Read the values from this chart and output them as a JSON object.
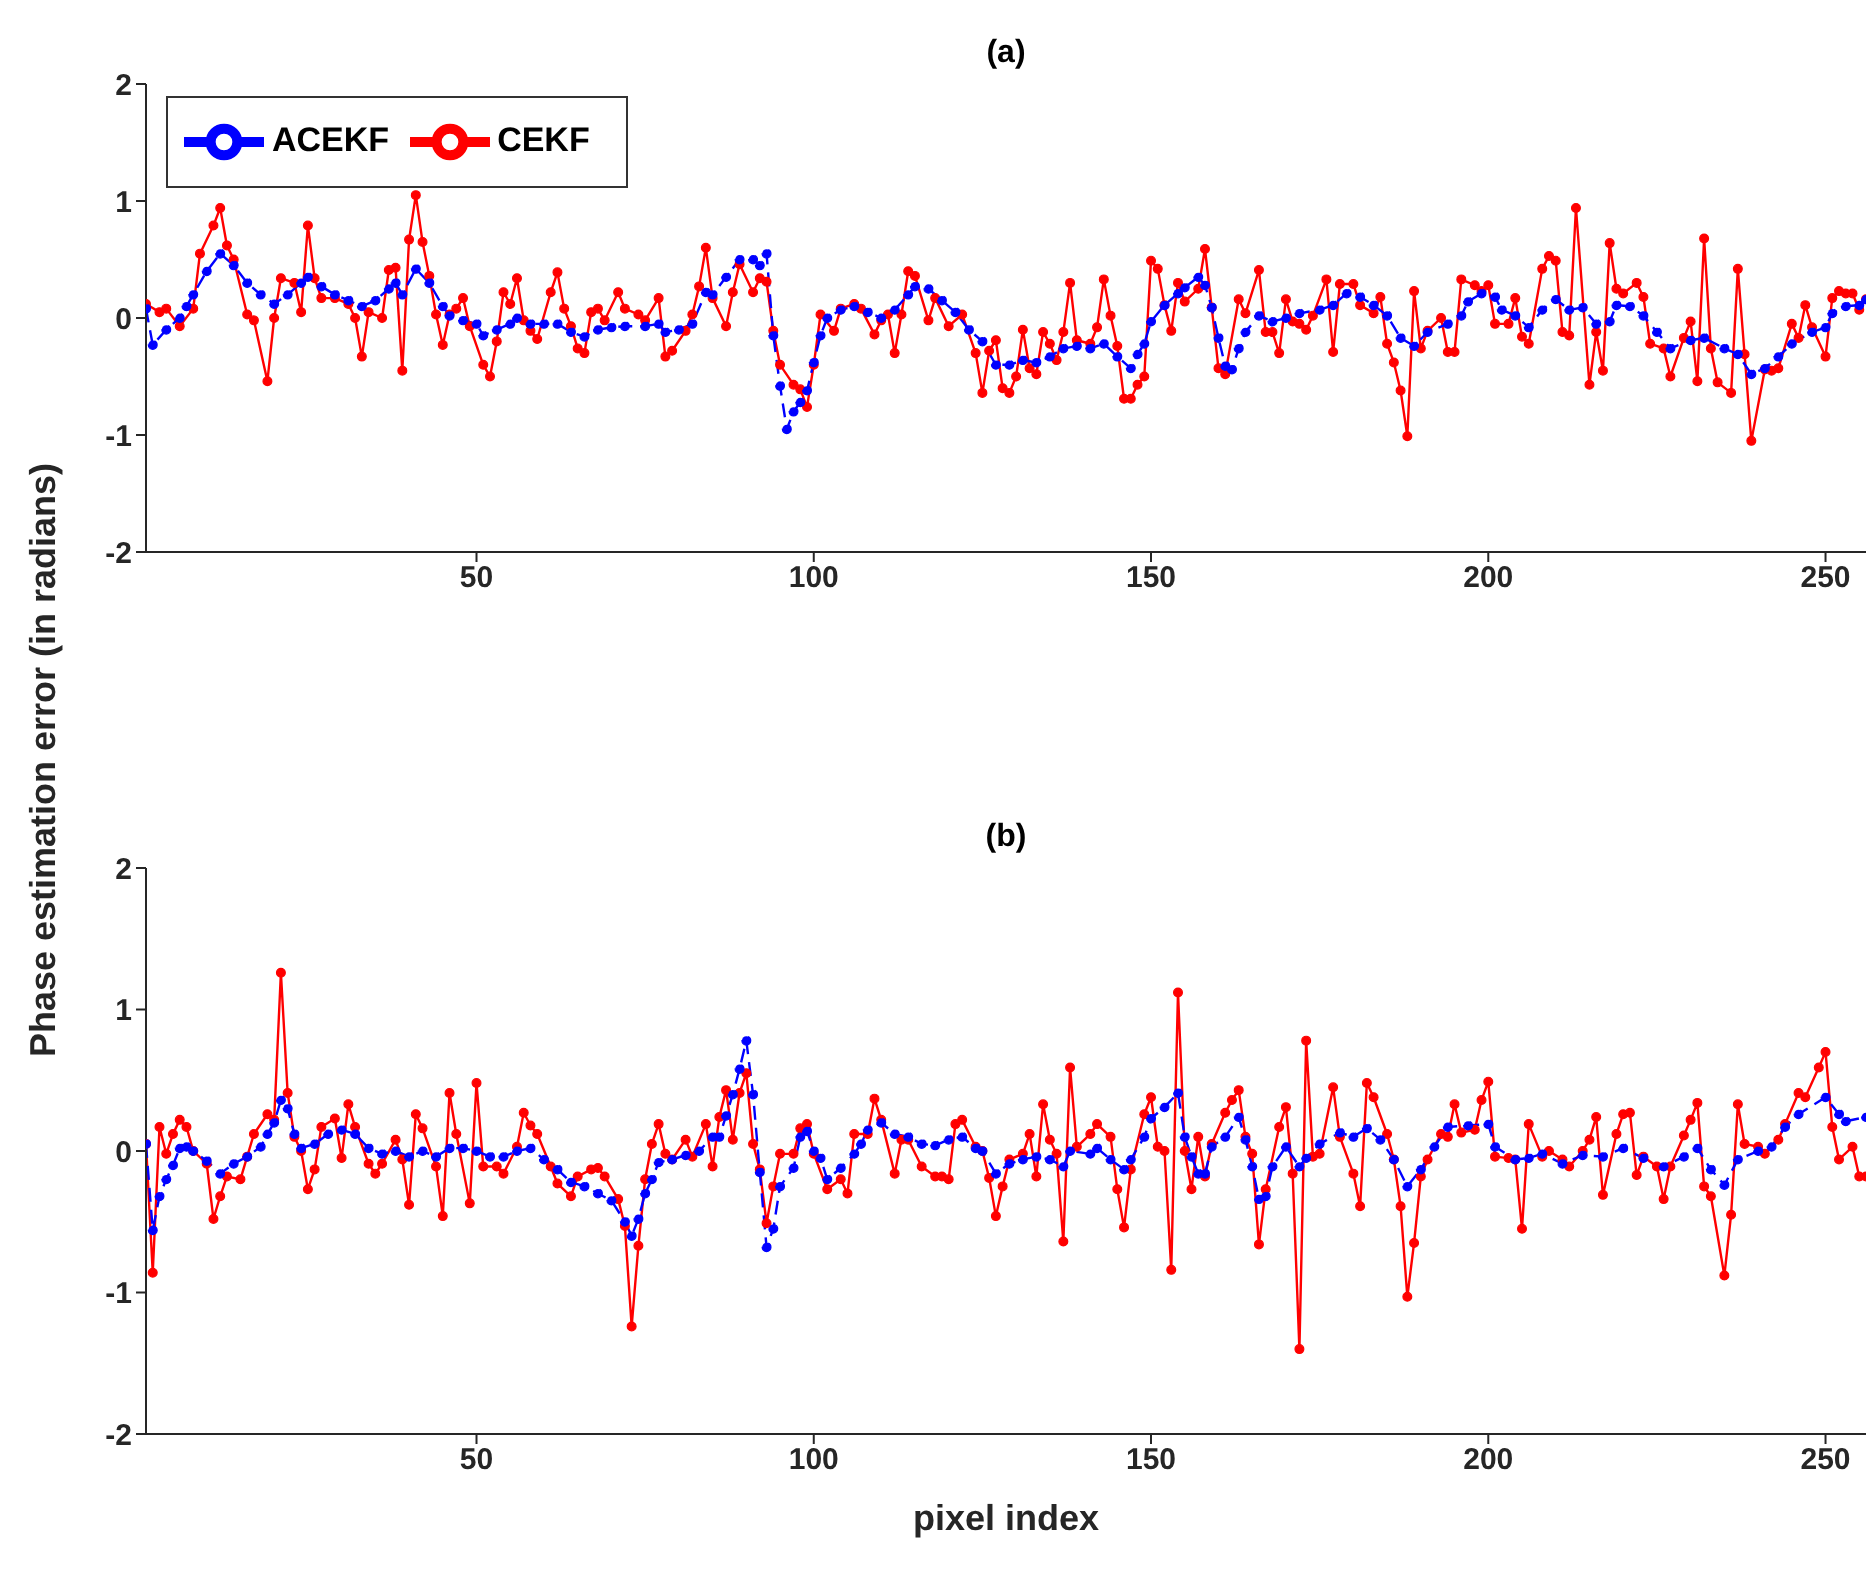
{
  "chart_data": [
    {
      "type": "line",
      "title": "(a)",
      "ylabel": "Phase estimation error (in radians)",
      "xlim": [
        1,
        256
      ],
      "xticks": [
        50,
        100,
        150,
        200,
        250
      ],
      "ylim": [
        -2,
        2
      ],
      "yticks": [
        -2,
        -1,
        0,
        1,
        2
      ],
      "legend": "top left",
      "marker": "circle",
      "series": [
        {
          "name": "CEKF",
          "color": "#ff0000",
          "line_style": "solid",
          "x": [
            1,
            3,
            4,
            6,
            8,
            9,
            11,
            12,
            13,
            14,
            16,
            17,
            19,
            20,
            21,
            23,
            24,
            25,
            26,
            27,
            29,
            31,
            32,
            33,
            34,
            36,
            37,
            38,
            39,
            40,
            41,
            42,
            43,
            44,
            45,
            46,
            47,
            48,
            49,
            51,
            52,
            53,
            54,
            55,
            56,
            57,
            58,
            59,
            61,
            62,
            63,
            64,
            65,
            66,
            67,
            68,
            69,
            71,
            72,
            74,
            75,
            77,
            78,
            79,
            81,
            82,
            83,
            84,
            85,
            87,
            88,
            89,
            91,
            92,
            93,
            94,
            95,
            97,
            98,
            99,
            100,
            101,
            103,
            104,
            106,
            107,
            109,
            110,
            111,
            112,
            113,
            114,
            115,
            117,
            118,
            120,
            122,
            124,
            125,
            126,
            127,
            128,
            129,
            130,
            131,
            132,
            133,
            134,
            135,
            136,
            137,
            138,
            139,
            141,
            142,
            143,
            144,
            145,
            146,
            147,
            148,
            149,
            150,
            151,
            152,
            153,
            154,
            155,
            157,
            158,
            159,
            160,
            161,
            163,
            164,
            166,
            167,
            168,
            169,
            170,
            171,
            172,
            173,
            174,
            176,
            177,
            178,
            180,
            181,
            183,
            184,
            185,
            186,
            187,
            188,
            189,
            190,
            191,
            193,
            194,
            195,
            196,
            198,
            199,
            200,
            201,
            203,
            204,
            205,
            206,
            208,
            209,
            210,
            211,
            212,
            213,
            215,
            216,
            217,
            218,
            219,
            220,
            222,
            223,
            224,
            226,
            227,
            229,
            230,
            231,
            232,
            233,
            234,
            236,
            237,
            238,
            239,
            241,
            242,
            243,
            245,
            246,
            247,
            248,
            250,
            251,
            252,
            253,
            254,
            255,
            256
          ],
          "values": [
            0.12,
            0.05,
            0.08,
            -0.07,
            0.08,
            0.55,
            0.79,
            0.94,
            0.62,
            0.5,
            0.03,
            -0.02,
            -0.54,
            0,
            0.34,
            0.3,
            0.05,
            0.79,
            0.34,
            0.17,
            0.17,
            0.12,
            0,
            -0.33,
            0.05,
            0,
            0.41,
            0.43,
            -0.45,
            0.67,
            1.05,
            0.65,
            0.36,
            0.03,
            -0.23,
            0.03,
            0.08,
            0.17,
            -0.07,
            -0.4,
            -0.5,
            -0.2,
            0.22,
            0.12,
            0.34,
            -0.02,
            -0.11,
            -0.18,
            0.22,
            0.39,
            0.08,
            -0.07,
            -0.26,
            -0.3,
            0.05,
            0.08,
            -0.02,
            0.22,
            0.08,
            0.03,
            -0.02,
            0.17,
            -0.33,
            -0.28,
            -0.11,
            0.03,
            0.27,
            0.6,
            0.17,
            -0.07,
            0.22,
            0.46,
            0.22,
            0.34,
            0.31,
            -0.11,
            -0.4,
            -0.57,
            -0.61,
            -0.76,
            -0.4,
            0.03,
            -0.11,
            0.08,
            0.12,
            0.08,
            -0.14,
            -0.02,
            0.03,
            -0.3,
            0.03,
            0.4,
            0.36,
            -0.02,
            0.17,
            -0.07,
            0.03,
            -0.3,
            -0.64,
            -0.28,
            -0.19,
            -0.6,
            -0.64,
            -0.5,
            -0.1,
            -0.43,
            -0.48,
            -0.12,
            -0.22,
            -0.36,
            -0.12,
            0.3,
            -0.19,
            -0.22,
            -0.08,
            0.33,
            0.02,
            -0.24,
            -0.69,
            -0.69,
            -0.57,
            -0.5,
            0.49,
            0.42,
            0.11,
            -0.11,
            0.3,
            0.14,
            0.25,
            0.59,
            0.09,
            -0.43,
            -0.48,
            0.16,
            0.04,
            0.41,
            -0.12,
            -0.12,
            -0.3,
            0.16,
            -0.03,
            -0.05,
            -0.1,
            0.02,
            0.33,
            -0.29,
            0.29,
            0.29,
            0.11,
            0.04,
            0.18,
            -0.22,
            -0.38,
            -0.62,
            -1.01,
            0.23,
            -0.26,
            -0.11,
            0,
            -0.29,
            -0.29,
            0.33,
            0.28,
            0.23,
            0.28,
            -0.05,
            -0.05,
            0.17,
            -0.16,
            -0.22,
            0.42,
            0.53,
            0.49,
            -0.12,
            -0.15,
            0.94,
            -0.57,
            -0.12,
            -0.45,
            0.64,
            0.25,
            0.21,
            0.3,
            0.18,
            -0.22,
            -0.26,
            -0.5,
            -0.17,
            -0.03,
            -0.54,
            0.68,
            -0.26,
            -0.55,
            -0.64,
            0.42,
            -0.31,
            -1.05,
            -0.44,
            -0.45,
            -0.43,
            -0.05,
            -0.17,
            0.11,
            -0.08,
            -0.33,
            0.17,
            0.23,
            0.21,
            0.21,
            0.07,
            0.16
          ]
        },
        {
          "name": "ACEKF",
          "color": "#0000ff",
          "line_style": "dashed",
          "x": [
            1,
            2,
            4,
            6,
            7,
            8,
            10,
            12,
            14,
            16,
            18,
            20,
            22,
            24,
            25,
            27,
            29,
            31,
            33,
            35,
            37,
            38,
            39,
            41,
            43,
            45,
            46,
            48,
            50,
            51,
            53,
            55,
            56,
            58,
            60,
            62,
            64,
            66,
            68,
            70,
            72,
            75,
            77,
            78,
            80,
            82,
            84,
            85,
            87,
            89,
            91,
            92,
            93,
            94,
            95,
            96,
            97,
            98,
            99,
            100,
            101,
            102,
            104,
            106,
            108,
            110,
            112,
            114,
            115,
            117,
            119,
            121,
            123,
            125,
            127,
            129,
            131,
            133,
            135,
            137,
            139,
            141,
            143,
            145,
            147,
            148,
            149,
            150,
            152,
            154,
            155,
            157,
            158,
            159,
            160,
            161,
            162,
            163,
            164,
            166,
            168,
            170,
            172,
            175,
            177,
            179,
            181,
            183,
            185,
            187,
            189,
            191,
            194,
            196,
            197,
            199,
            201,
            202,
            204,
            206,
            208,
            210,
            212,
            214,
            216,
            218,
            219,
            221,
            223,
            225,
            227,
            230,
            232,
            235,
            237,
            239,
            241,
            243,
            245,
            248,
            250,
            251,
            253,
            255,
            256
          ],
          "values": [
            0.08,
            -0.23,
            -0.1,
            0,
            0.1,
            0.2,
            0.4,
            0.55,
            0.45,
            0.3,
            0.2,
            0.12,
            0.2,
            0.3,
            0.35,
            0.27,
            0.2,
            0.15,
            0.1,
            0.15,
            0.25,
            0.3,
            0.2,
            0.42,
            0.3,
            0.1,
            0.02,
            -0.02,
            -0.05,
            -0.15,
            -0.1,
            -0.05,
            0,
            -0.05,
            -0.05,
            -0.05,
            -0.12,
            -0.16,
            -0.1,
            -0.08,
            -0.07,
            -0.07,
            -0.05,
            -0.12,
            -0.1,
            -0.05,
            0.22,
            0.2,
            0.35,
            0.5,
            0.5,
            0.45,
            0.55,
            -0.15,
            -0.58,
            -0.95,
            -0.8,
            -0.72,
            -0.62,
            -0.38,
            -0.15,
            0,
            0.07,
            0.1,
            0.05,
            0,
            0.07,
            0.2,
            0.27,
            0.25,
            0.15,
            0.05,
            -0.1,
            -0.2,
            -0.4,
            -0.4,
            -0.36,
            -0.38,
            -0.33,
            -0.26,
            -0.24,
            -0.26,
            -0.22,
            -0.33,
            -0.43,
            -0.31,
            -0.22,
            -0.03,
            0.11,
            0.21,
            0.26,
            0.35,
            0.28,
            0.09,
            -0.17,
            -0.41,
            -0.44,
            -0.26,
            -0.12,
            0.02,
            -0.03,
            0,
            0.04,
            0.07,
            0.11,
            0.21,
            0.18,
            0.11,
            0.02,
            -0.17,
            -0.24,
            -0.12,
            -0.05,
            0.02,
            0.14,
            0.21,
            0.18,
            0.07,
            0.02,
            -0.08,
            0.07,
            0.16,
            0.07,
            0.09,
            -0.05,
            -0.03,
            0.11,
            0.1,
            0.02,
            -0.12,
            -0.26,
            -0.19,
            -0.17,
            -0.26,
            -0.31,
            -0.48,
            -0.43,
            -0.33,
            -0.22,
            -0.12,
            -0.08,
            0.04,
            0.1,
            0.11,
            0.16
          ]
        }
      ]
    },
    {
      "type": "line",
      "title": "(b)",
      "xlabel": "pixel index",
      "xlim": [
        1,
        256
      ],
      "xticks": [
        50,
        100,
        150,
        200,
        250
      ],
      "ylim": [
        -2,
        2
      ],
      "yticks": [
        -2,
        -1,
        0,
        1,
        2
      ],
      "marker": "circle",
      "series": [
        {
          "color": "#ff0000",
          "line_style": "solid",
          "x": [
            1,
            2,
            3,
            4,
            5,
            6,
            7,
            8,
            10,
            11,
            12,
            13,
            15,
            16,
            17,
            19,
            20,
            21,
            22,
            23,
            24,
            25,
            26,
            27,
            29,
            30,
            31,
            32,
            34,
            35,
            36,
            38,
            39,
            40,
            41,
            42,
            44,
            45,
            46,
            47,
            49,
            50,
            51,
            53,
            54,
            56,
            57,
            58,
            59,
            61,
            62,
            64,
            65,
            67,
            68,
            69,
            71,
            72,
            73,
            74,
            75,
            76,
            77,
            78,
            79,
            81,
            82,
            84,
            85,
            86,
            87,
            88,
            89,
            90,
            91,
            92,
            93,
            94,
            95,
            97,
            98,
            99,
            100,
            102,
            104,
            105,
            106,
            108,
            109,
            110,
            112,
            113,
            114,
            116,
            118,
            119,
            120,
            121,
            122,
            124,
            125,
            126,
            127,
            128,
            129,
            131,
            132,
            133,
            134,
            135,
            136,
            137,
            138,
            139,
            141,
            142,
            144,
            145,
            146,
            147,
            149,
            150,
            151,
            152,
            153,
            154,
            155,
            156,
            157,
            158,
            159,
            161,
            162,
            163,
            164,
            165,
            166,
            167,
            169,
            170,
            171,
            172,
            173,
            174,
            175,
            177,
            178,
            180,
            181,
            182,
            183,
            185,
            186,
            187,
            188,
            189,
            190,
            191,
            193,
            194,
            195,
            196,
            198,
            199,
            200,
            201,
            203,
            204,
            205,
            206,
            208,
            209,
            211,
            212,
            214,
            215,
            216,
            217,
            219,
            220,
            221,
            222,
            223,
            225,
            226,
            227,
            229,
            230,
            231,
            232,
            233,
            235,
            236,
            237,
            238,
            240,
            241,
            243,
            244,
            246,
            247,
            249,
            250,
            251,
            252,
            254,
            255,
            256
          ],
          "values": [
            0.05,
            -0.86,
            0.17,
            -0.02,
            0.12,
            0.22,
            0.17,
            0,
            -0.09,
            -0.48,
            -0.32,
            -0.18,
            -0.2,
            -0.04,
            0.12,
            0.26,
            0.22,
            1.26,
            0.41,
            0.1,
            0,
            -0.27,
            -0.13,
            0.17,
            0.23,
            -0.05,
            0.33,
            0.17,
            -0.09,
            -0.16,
            -0.09,
            0.08,
            -0.06,
            -0.38,
            0.26,
            0.16,
            -0.11,
            -0.46,
            0.41,
            0.12,
            -0.37,
            0.48,
            -0.11,
            -0.11,
            -0.16,
            0.03,
            0.27,
            0.18,
            0.12,
            -0.11,
            -0.23,
            -0.32,
            -0.18,
            -0.13,
            -0.12,
            -0.18,
            -0.34,
            -0.53,
            -1.24,
            -0.67,
            -0.2,
            0.05,
            0.19,
            -0.02,
            -0.06,
            0.08,
            -0.04,
            0.19,
            -0.11,
            0.24,
            0.43,
            0.08,
            0.41,
            0.55,
            0.05,
            -0.13,
            -0.51,
            -0.25,
            -0.02,
            -0.02,
            0.16,
            0.19,
            -0.02,
            -0.27,
            -0.2,
            -0.3,
            0.12,
            0.12,
            0.37,
            0.22,
            -0.16,
            0.08,
            0.08,
            -0.11,
            -0.18,
            -0.18,
            -0.2,
            0.19,
            0.22,
            0.03,
            0,
            -0.19,
            -0.46,
            -0.25,
            -0.06,
            -0.02,
            0.12,
            -0.18,
            0.33,
            0.08,
            -0.02,
            -0.64,
            0.59,
            0.03,
            0.12,
            0.19,
            0.1,
            -0.27,
            -0.54,
            -0.13,
            0.26,
            0.38,
            0.03,
            0,
            -0.84,
            1.12,
            0,
            -0.27,
            0.1,
            -0.18,
            0.05,
            0.27,
            0.36,
            0.43,
            0.1,
            -0.02,
            -0.66,
            -0.27,
            0.17,
            0.31,
            -0.16,
            -1.4,
            0.78,
            -0.04,
            -0.02,
            0.45,
            0.1,
            -0.16,
            -0.39,
            0.48,
            0.38,
            0.12,
            -0.06,
            -0.39,
            -1.03,
            -0.65,
            -0.18,
            -0.06,
            0.12,
            0.1,
            0.33,
            0.13,
            0.15,
            0.36,
            0.49,
            -0.04,
            -0.05,
            -0.06,
            -0.55,
            0.19,
            -0.04,
            0,
            -0.06,
            -0.11,
            0,
            0.08,
            0.24,
            -0.31,
            0.12,
            0.26,
            0.27,
            -0.17,
            -0.04,
            -0.11,
            -0.34,
            -0.11,
            0.11,
            0.22,
            0.34,
            -0.25,
            -0.32,
            -0.88,
            -0.45,
            0.33,
            0.05,
            0.03,
            -0.02,
            0.08,
            0.19,
            0.41,
            0.38,
            0.59,
            0.7,
            0.17,
            -0.06,
            0.03,
            -0.18,
            -0.18
          ]
        },
        {
          "color": "#0000ff",
          "line_style": "dashed",
          "x": [
            1,
            2,
            3,
            4,
            5,
            6,
            7,
            8,
            10,
            12,
            14,
            16,
            18,
            19,
            20,
            21,
            22,
            23,
            24,
            26,
            28,
            30,
            32,
            34,
            36,
            38,
            40,
            42,
            44,
            46,
            48,
            50,
            52,
            54,
            56,
            58,
            60,
            62,
            64,
            66,
            68,
            70,
            72,
            73,
            74,
            75,
            76,
            77,
            79,
            81,
            83,
            85,
            86,
            87,
            88,
            89,
            90,
            91,
            92,
            93,
            94,
            95,
            97,
            98,
            99,
            100,
            101,
            102,
            104,
            106,
            107,
            108,
            110,
            112,
            114,
            116,
            118,
            120,
            122,
            124,
            125,
            127,
            129,
            131,
            133,
            135,
            137,
            138,
            141,
            142,
            144,
            146,
            147,
            149,
            150,
            152,
            154,
            155,
            156,
            157,
            158,
            159,
            161,
            163,
            164,
            165,
            166,
            167,
            168,
            170,
            172,
            173,
            175,
            178,
            180,
            182,
            184,
            186,
            188,
            190,
            192,
            194,
            197,
            200,
            201,
            204,
            206,
            208,
            211,
            214,
            217,
            220,
            223,
            226,
            229,
            231,
            233,
            235,
            237,
            240,
            242,
            244,
            246,
            250,
            252,
            253,
            256
          ],
          "values": [
            0.05,
            -0.56,
            -0.32,
            -0.2,
            -0.1,
            0.02,
            0.03,
            0,
            -0.07,
            -0.16,
            -0.09,
            -0.04,
            0.03,
            0.12,
            0.2,
            0.36,
            0.3,
            0.12,
            0.02,
            0.05,
            0.12,
            0.15,
            0.12,
            0.02,
            -0.02,
            0,
            -0.04,
            0,
            -0.04,
            0.02,
            0.02,
            0,
            -0.04,
            -0.04,
            0,
            0.02,
            -0.06,
            -0.13,
            -0.22,
            -0.25,
            -0.3,
            -0.35,
            -0.5,
            -0.6,
            -0.48,
            -0.3,
            -0.2,
            -0.08,
            -0.06,
            -0.03,
            0,
            0.1,
            0.1,
            0.25,
            0.4,
            0.58,
            0.78,
            0.4,
            -0.15,
            -0.68,
            -0.55,
            -0.25,
            -0.12,
            0.1,
            0.14,
            0,
            -0.05,
            -0.2,
            -0.12,
            -0.02,
            0.05,
            0.15,
            0.2,
            0.12,
            0.1,
            0.05,
            0.04,
            0.08,
            0.1,
            0.02,
            0,
            -0.16,
            -0.09,
            -0.06,
            -0.04,
            -0.06,
            -0.11,
            0,
            -0.02,
            0.02,
            -0.06,
            -0.13,
            -0.06,
            0.1,
            0.23,
            0.31,
            0.41,
            0.1,
            -0.04,
            -0.16,
            -0.16,
            0.03,
            0.1,
            0.24,
            0.08,
            -0.11,
            -0.34,
            -0.32,
            -0.11,
            0.03,
            -0.11,
            -0.05,
            0.05,
            0.13,
            0.1,
            0.16,
            0.08,
            -0.06,
            -0.25,
            -0.13,
            0.03,
            0.17,
            0.18,
            0.19,
            0.03,
            -0.06,
            -0.05,
            -0.02,
            -0.09,
            -0.03,
            -0.04,
            0.02,
            -0.05,
            -0.11,
            -0.04,
            0.02,
            -0.13,
            -0.24,
            -0.06,
            0,
            0.03,
            0.17,
            0.26,
            0.38,
            0.26,
            0.21,
            0.24
          ]
        }
      ]
    }
  ]
}
